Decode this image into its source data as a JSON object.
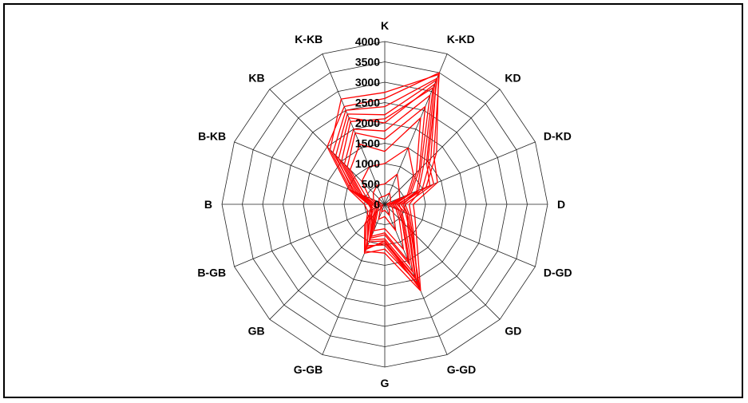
{
  "chart_data": {
    "type": "radar",
    "categories": [
      "K",
      "K-KD",
      "KD",
      "D-KD",
      "D",
      "D-GD",
      "GD",
      "G-GD",
      "G",
      "G-GB",
      "GB",
      "B-GB",
      "B",
      "B-KB",
      "KB",
      "K-KB"
    ],
    "rlim": [
      0,
      4000
    ],
    "rticks": [
      "0",
      "500",
      "1000",
      "1500",
      "2000",
      "2500",
      "3000",
      "3500",
      "4000"
    ],
    "grid": true,
    "legend": "none",
    "color": "#ff0000",
    "series": [
      {
        "values": [
          2750,
          3450,
          1800,
          1100,
          400,
          600,
          900,
          2250,
          900,
          1200,
          500,
          300,
          400,
          900,
          1900,
          2800
        ]
      },
      {
        "values": [
          2400,
          3350,
          1500,
          1300,
          500,
          650,
          950,
          2150,
          1000,
          1100,
          600,
          300,
          350,
          800,
          1800,
          2500
        ]
      },
      {
        "values": [
          2200,
          3300,
          1600,
          1000,
          600,
          700,
          1000,
          2100,
          1100,
          1300,
          700,
          350,
          350,
          850,
          1700,
          2400
        ]
      },
      {
        "values": [
          2000,
          3200,
          1450,
          1200,
          300,
          550,
          850,
          2000,
          950,
          1150,
          550,
          400,
          300,
          750,
          1600,
          2300
        ]
      },
      {
        "values": [
          2600,
          3500,
          1700,
          1400,
          700,
          800,
          1100,
          2300,
          1200,
          1250,
          650,
          450,
          500,
          950,
          2000,
          2600
        ]
      },
      {
        "values": [
          2100,
          3100,
          1350,
          900,
          450,
          600,
          800,
          1950,
          900,
          1000,
          450,
          350,
          400,
          700,
          1500,
          2200
        ]
      },
      {
        "values": [
          1800,
          2900,
          1250,
          850,
          350,
          450,
          700,
          1800,
          850,
          950,
          400,
          250,
          300,
          650,
          1400,
          2000
        ]
      },
      {
        "values": [
          1600,
          2600,
          1200,
          700,
          250,
          400,
          650,
          1600,
          750,
          900,
          350,
          200,
          250,
          600,
          1300,
          1900
        ]
      },
      {
        "values": [
          1300,
          2300,
          1100,
          650,
          200,
          350,
          600,
          1500,
          700,
          850,
          300,
          200,
          250,
          500,
          1200,
          1600
        ]
      },
      {
        "values": [
          1000,
          1500,
          1000,
          600,
          150,
          300,
          500,
          1200,
          600,
          700,
          250,
          150,
          200,
          400,
          800,
          1000
        ]
      },
      {
        "values": [
          500,
          800,
          500,
          400,
          100,
          200,
          300,
          700,
          300,
          400,
          150,
          100,
          150,
          300,
          400,
          500
        ]
      },
      {
        "values": [
          200,
          300,
          200,
          150,
          50,
          100,
          150,
          300,
          150,
          200,
          100,
          50,
          80,
          150,
          200,
          200
        ]
      }
    ]
  }
}
